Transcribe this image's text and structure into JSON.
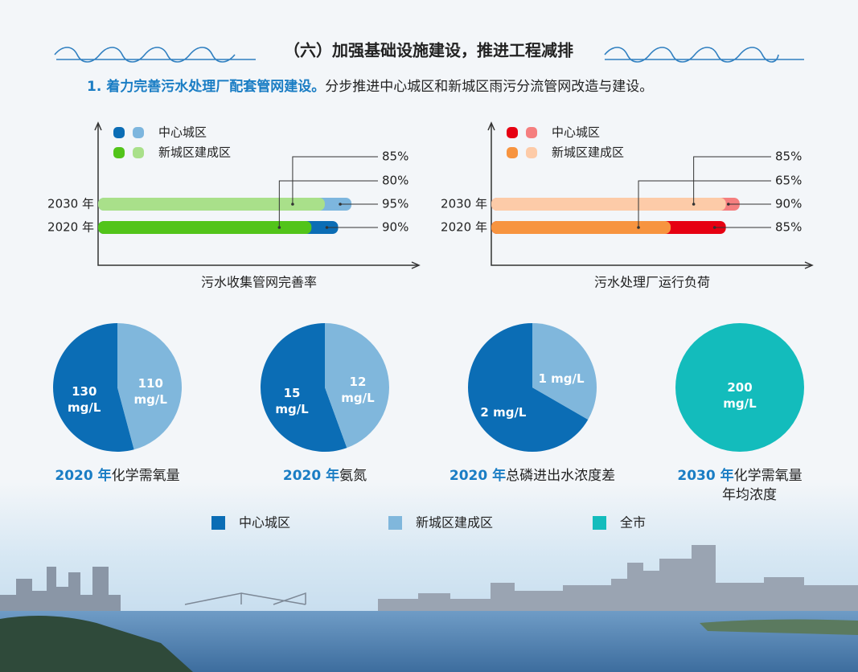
{
  "header": {
    "title": "（六）加强基础设施建设，推进工程减排",
    "lead": "1. 着力完善污水处理厂配套管网建设。",
    "text": "分步推进中心城区和新城区雨污分流管网改造与建设。"
  },
  "chart_data": [
    {
      "type": "hbar-overlay",
      "xlabel": "污水收集管网完善率",
      "categories": [
        "2030 年",
        "2020 年"
      ],
      "xlim": [
        0,
        120
      ],
      "series": [
        {
          "name": "中心城区",
          "colors": [
            "#7db6de",
            "#0b6db5"
          ],
          "values": [
            95,
            90
          ],
          "value_labels": [
            "95%",
            "90%"
          ]
        },
        {
          "name": "新城区建成区",
          "colors": [
            "#a9e08a",
            "#52c41a"
          ],
          "values": [
            85,
            80
          ],
          "value_labels": [
            "85%",
            "80%"
          ]
        }
      ]
    },
    {
      "type": "hbar-overlay",
      "xlabel": "污水处理厂运行负荷",
      "categories": [
        "2030 年",
        "2020 年"
      ],
      "xlim": [
        0,
        116
      ],
      "series": [
        {
          "name": "中心城区",
          "colors": [
            "#f57f7f",
            "#e60012"
          ],
          "values": [
            90,
            85
          ],
          "value_labels": [
            "90%",
            "85%"
          ]
        },
        {
          "name": "新城区建成区",
          "colors": [
            "#fdcba8",
            "#f7943f"
          ],
          "values": [
            85,
            65
          ],
          "value_labels": [
            "85%",
            "65%"
          ]
        }
      ]
    },
    {
      "type": "pie",
      "title": [
        "2020 年",
        "化学需氧量"
      ],
      "categories": [
        "中心城区",
        "新城区建成区"
      ],
      "colors": [
        "#0b6db5",
        "#80b7dc"
      ],
      "values": [
        130,
        110
      ],
      "value_labels": [
        "130 mg/L",
        "110 mg/L"
      ]
    },
    {
      "type": "pie",
      "title": [
        "2020 年",
        "氨氮"
      ],
      "categories": [
        "中心城区",
        "新城区建成区"
      ],
      "colors": [
        "#0b6db5",
        "#80b7dc"
      ],
      "values": [
        15,
        12
      ],
      "value_labels": [
        "15 mg/L",
        "12 mg/L"
      ]
    },
    {
      "type": "pie",
      "title": [
        "2020 年",
        "总磷进出水浓度差"
      ],
      "categories": [
        "中心城区",
        "新城区建成区"
      ],
      "colors": [
        "#0b6db5",
        "#80b7dc"
      ],
      "values": [
        2,
        1
      ],
      "value_labels": [
        "2 mg/L",
        "1 mg/L"
      ]
    },
    {
      "type": "pie",
      "title": [
        "2030 年",
        "化学需氧量",
        "年均浓度"
      ],
      "categories": [
        "全市"
      ],
      "colors": [
        "#13bcbc"
      ],
      "values": [
        200
      ],
      "value_labels": [
        "200 mg/L"
      ]
    }
  ]
}
